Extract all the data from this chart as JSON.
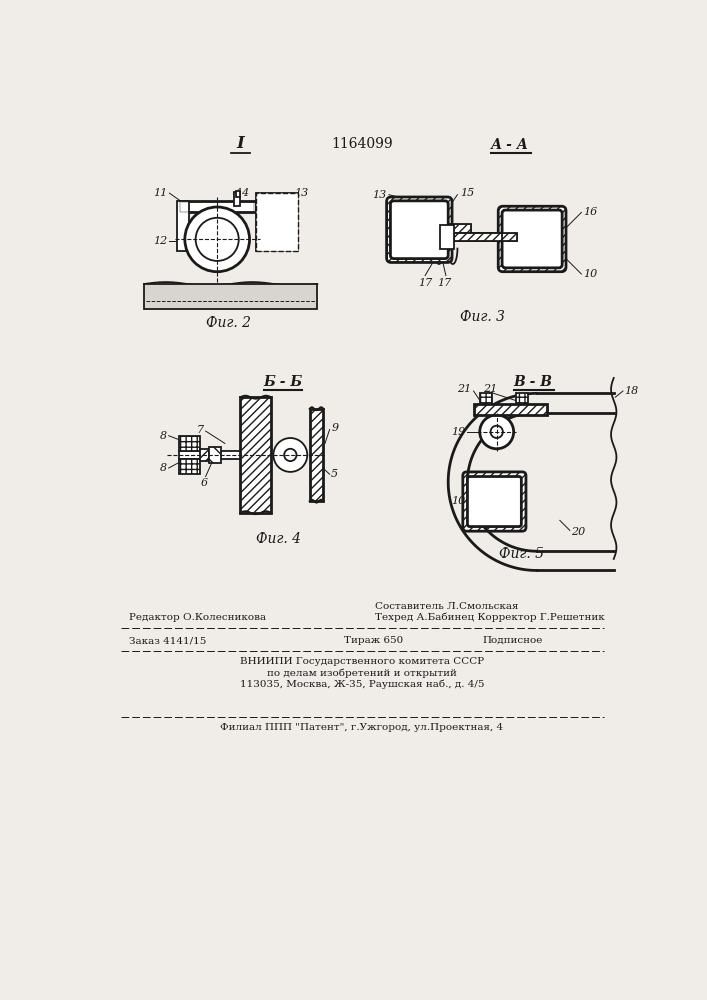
{
  "patent_number": "1164099",
  "background_color": "#f0ede8",
  "drawing_color": "#1a1a1a",
  "footer": {
    "line1_left": "Редактор О.Колесникова",
    "line1_center": "Составитель Л.Смольская",
    "line1_right": "Техред А.Бабинец Корректор Г.Решетник",
    "line2_left": "Заказ 4141/15",
    "line2_center": "Тираж 650",
    "line2_right": "Подписное",
    "line3": "ВНИИПИ Государственного комитета СССР",
    "line4": "по делам изобретений и открытий",
    "line5": "113035, Москва, Ж-35, Раушская наб., д. 4/5",
    "line6": "Филиал ППП \"Патент\", г.Ужгород, ул.Проектная, 4"
  },
  "fig2_label": "Фиг. 2",
  "fig3_label": "Фиг. 3",
  "fig4_label": "Фиг. 4",
  "fig5_label": "Фиг. 5",
  "fig2_section": "I",
  "fig3_section": "А - А",
  "fig4_section": "Б - Б",
  "fig5_section": "В - В"
}
